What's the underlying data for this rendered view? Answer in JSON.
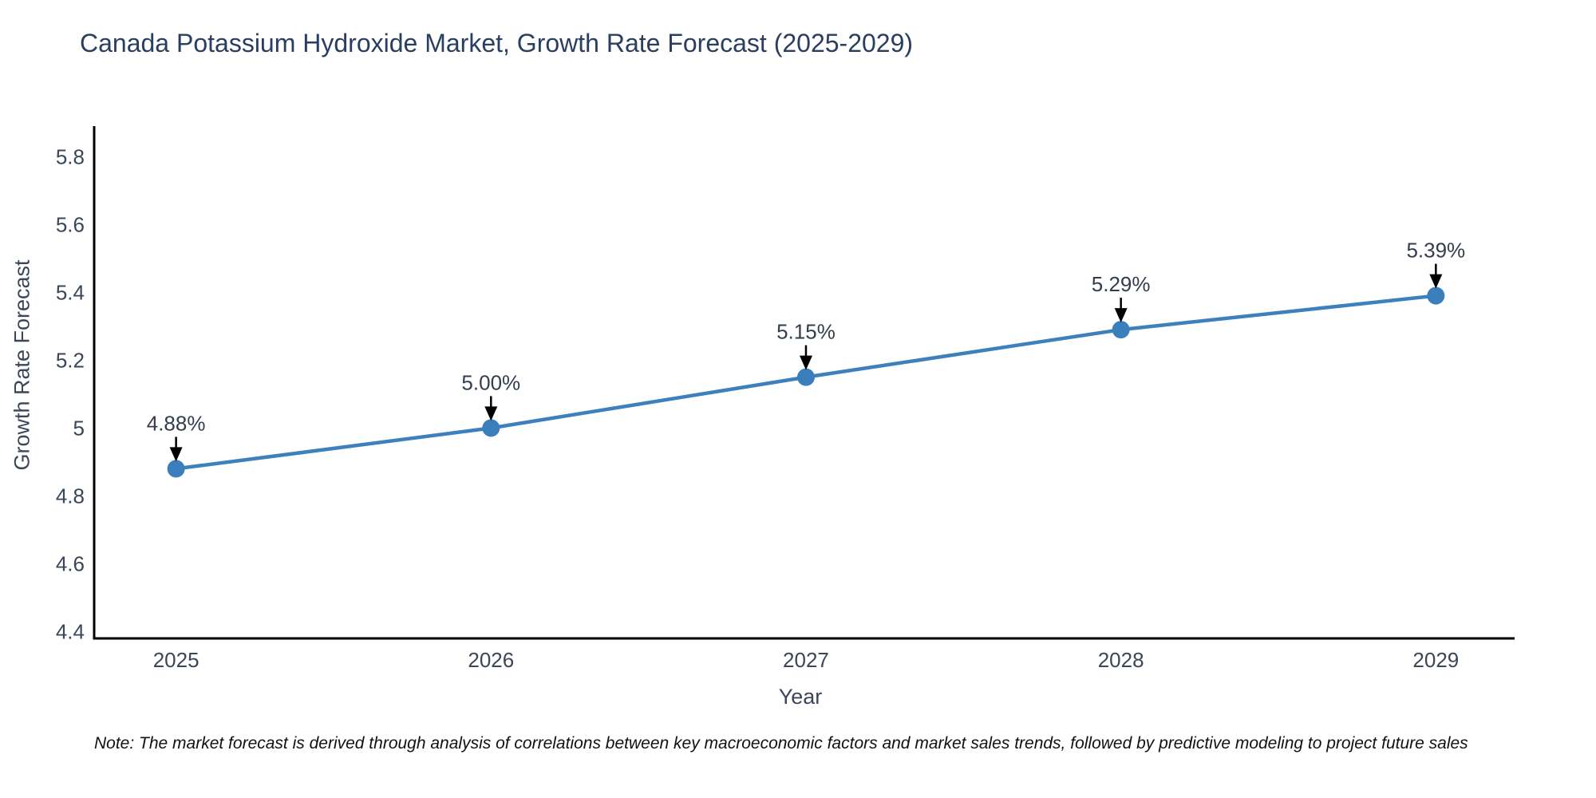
{
  "chart_data": {
    "type": "line",
    "title": "Canada Potassium Hydroxide Market, Growth Rate Forecast (2025-2029)",
    "xlabel": "Year",
    "ylabel": "Growth Rate Forecast",
    "x": [
      2025,
      2026,
      2027,
      2028,
      2029
    ],
    "values": [
      4.88,
      5.0,
      5.15,
      5.29,
      5.39
    ],
    "point_labels": [
      "4.88%",
      "5.00%",
      "5.15%",
      "5.29%",
      "5.39%"
    ],
    "x_ticks": [
      "2025",
      "2026",
      "2027",
      "2028",
      "2029"
    ],
    "y_ticks": [
      "4.4",
      "4.6",
      "4.8",
      "5",
      "5.2",
      "5.4",
      "5.6",
      "5.8"
    ],
    "xlim": [
      2024.74,
      2029.25
    ],
    "ylim": [
      4.38,
      5.89
    ],
    "grid": false,
    "legend_position": "none",
    "line_color": "#3d80bd",
    "marker_color": "#3a7fbc",
    "arrow_color": "#000000",
    "annotation_text_color": "#333d4d",
    "tick_text_color": "#3b4659",
    "axis_line_color": "#000000"
  },
  "note": {
    "text": "Note: The market forecast is derived through analysis of correlations between key macroeconomic factors and market sales trends, followed by predictive modeling to project future sales"
  }
}
